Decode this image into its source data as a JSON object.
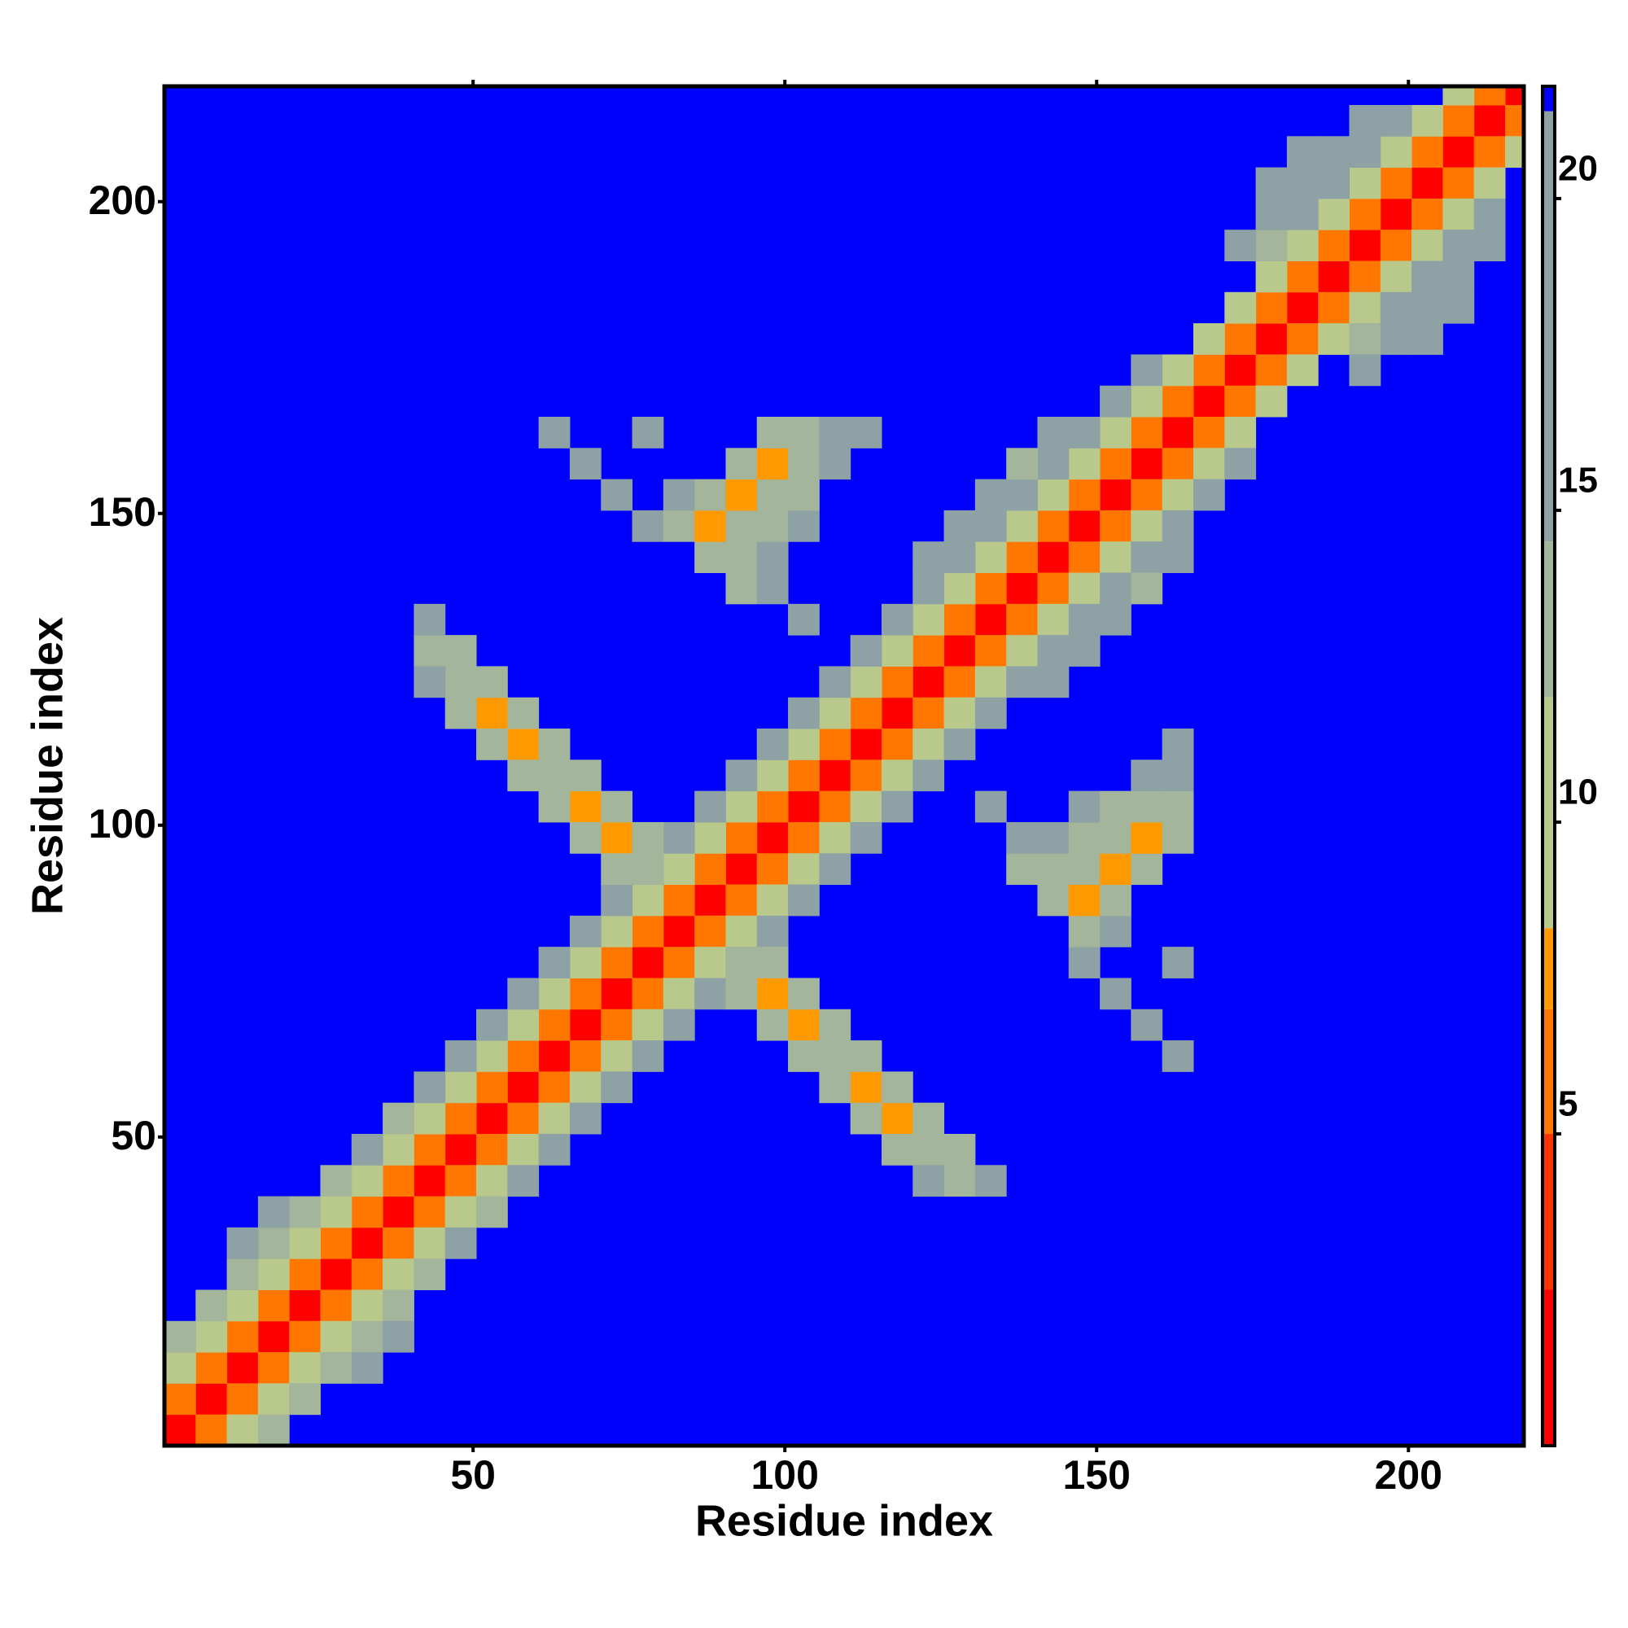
{
  "chart_data": {
    "type": "heatmap",
    "xlabel": "Residue index",
    "ylabel": "Residue index",
    "xlim": [
      0.5,
      218.5
    ],
    "ylim": [
      0.5,
      218.5
    ],
    "xticks": [
      50,
      100,
      150,
      200
    ],
    "yticks": [
      50,
      100,
      150,
      200
    ],
    "clim": [
      0,
      21.8
    ],
    "cticks": [
      5,
      10,
      15,
      20
    ],
    "symmetric": true,
    "background_color": "#0000ff",
    "color_stops": [
      {
        "value": 0,
        "color": "#ff0000"
      },
      {
        "value": 2.5,
        "color": "#ff3300"
      },
      {
        "value": 5,
        "color": "#ff7700"
      },
      {
        "value": 7,
        "color": "#ff9900"
      },
      {
        "value": 8.3,
        "color": "#b9c98c"
      },
      {
        "value": 12,
        "color": "#a3b59a"
      },
      {
        "value": 14.5,
        "color": "#8ea2a6"
      },
      {
        "value": 21.4,
        "color": "#0000ff"
      }
    ],
    "cells": [
      [
        3,
        3,
        2
      ],
      [
        8,
        8,
        2
      ],
      [
        13,
        13,
        2
      ],
      [
        18,
        18,
        2
      ],
      [
        23,
        23,
        2
      ],
      [
        28,
        28,
        2
      ],
      [
        33,
        33,
        2
      ],
      [
        38,
        38,
        2
      ],
      [
        43,
        43,
        2
      ],
      [
        48,
        48,
        2
      ],
      [
        53,
        53,
        2
      ],
      [
        58,
        58,
        2
      ],
      [
        63,
        63,
        2
      ],
      [
        68,
        68,
        2
      ],
      [
        73,
        73,
        2
      ],
      [
        78,
        78,
        2
      ],
      [
        83,
        83,
        2
      ],
      [
        88,
        88,
        2
      ],
      [
        93,
        93,
        2
      ],
      [
        98,
        98,
        2
      ],
      [
        103,
        103,
        2
      ],
      [
        108,
        108,
        2
      ],
      [
        113,
        113,
        2
      ],
      [
        118,
        118,
        2
      ],
      [
        123,
        123,
        2
      ],
      [
        128,
        128,
        2
      ],
      [
        133,
        133,
        2
      ],
      [
        138,
        138,
        2
      ],
      [
        143,
        143,
        2
      ],
      [
        148,
        148,
        2
      ],
      [
        153,
        153,
        2
      ],
      [
        158,
        158,
        2
      ],
      [
        163,
        163,
        2
      ],
      [
        168,
        168,
        2
      ],
      [
        173,
        173,
        2
      ],
      [
        178,
        178,
        2
      ],
      [
        183,
        183,
        2
      ],
      [
        188,
        188,
        2
      ],
      [
        193,
        193,
        2
      ],
      [
        198,
        198,
        2
      ],
      [
        203,
        203,
        2
      ],
      [
        208,
        208,
        2
      ],
      [
        213,
        213,
        2
      ],
      [
        218,
        218,
        2
      ],
      [
        3,
        8,
        6
      ],
      [
        8,
        13,
        6
      ],
      [
        13,
        18,
        6
      ],
      [
        18,
        23,
        6
      ],
      [
        23,
        28,
        6
      ],
      [
        28,
        33,
        6
      ],
      [
        33,
        38,
        6
      ],
      [
        38,
        43,
        6
      ],
      [
        43,
        48,
        6
      ],
      [
        48,
        53,
        6
      ],
      [
        53,
        58,
        6
      ],
      [
        58,
        63,
        6
      ],
      [
        63,
        68,
        6
      ],
      [
        68,
        73,
        6
      ],
      [
        73,
        78,
        6
      ],
      [
        78,
        83,
        6
      ],
      [
        83,
        88,
        6
      ],
      [
        88,
        93,
        6
      ],
      [
        93,
        98,
        6
      ],
      [
        98,
        103,
        6
      ],
      [
        103,
        108,
        6
      ],
      [
        108,
        113,
        6
      ],
      [
        113,
        118,
        6
      ],
      [
        118,
        123,
        6
      ],
      [
        123,
        128,
        6
      ],
      [
        128,
        133,
        6
      ],
      [
        133,
        138,
        6
      ],
      [
        138,
        143,
        6
      ],
      [
        143,
        148,
        6
      ],
      [
        148,
        153,
        6
      ],
      [
        153,
        158,
        6
      ],
      [
        158,
        163,
        6
      ],
      [
        163,
        168,
        6
      ],
      [
        168,
        173,
        6
      ],
      [
        173,
        178,
        6
      ],
      [
        178,
        183,
        6
      ],
      [
        183,
        188,
        6
      ],
      [
        188,
        193,
        6
      ],
      [
        193,
        198,
        6
      ],
      [
        198,
        203,
        6
      ],
      [
        203,
        208,
        6
      ],
      [
        208,
        213,
        6
      ],
      [
        213,
        218,
        6
      ],
      [
        3,
        13,
        10
      ],
      [
        8,
        18,
        10
      ],
      [
        13,
        23,
        10
      ],
      [
        18,
        28,
        10
      ],
      [
        23,
        33,
        10
      ],
      [
        28,
        38,
        10
      ],
      [
        33,
        43,
        10
      ],
      [
        38,
        48,
        10
      ],
      [
        43,
        53,
        10
      ],
      [
        48,
        58,
        10
      ],
      [
        53,
        63,
        10
      ],
      [
        58,
        68,
        10
      ],
      [
        63,
        73,
        10
      ],
      [
        68,
        78,
        10
      ],
      [
        73,
        83,
        10
      ],
      [
        78,
        88,
        10
      ],
      [
        83,
        93,
        10
      ],
      [
        88,
        98,
        10
      ],
      [
        93,
        103,
        10
      ],
      [
        98,
        108,
        10
      ],
      [
        103,
        113,
        10
      ],
      [
        108,
        118,
        10
      ],
      [
        113,
        123,
        10
      ],
      [
        118,
        128,
        10
      ],
      [
        123,
        133,
        10
      ],
      [
        128,
        138,
        10
      ],
      [
        133,
        143,
        10
      ],
      [
        138,
        148,
        10
      ],
      [
        143,
        153,
        10
      ],
      [
        148,
        158,
        10
      ],
      [
        153,
        163,
        10
      ],
      [
        158,
        168,
        10
      ],
      [
        163,
        173,
        10
      ],
      [
        168,
        178,
        10
      ],
      [
        173,
        183,
        10
      ],
      [
        178,
        188,
        10
      ],
      [
        183,
        193,
        10
      ],
      [
        188,
        198,
        10
      ],
      [
        193,
        203,
        10
      ],
      [
        198,
        208,
        10
      ],
      [
        203,
        213,
        10
      ],
      [
        208,
        218,
        10
      ],
      [
        3,
        18,
        14
      ],
      [
        8,
        23,
        14
      ],
      [
        13,
        28,
        14
      ],
      [
        18,
        33,
        14
      ],
      [
        23,
        38,
        14
      ],
      [
        28,
        43,
        14
      ],
      [
        33,
        48,
        15
      ],
      [
        38,
        53,
        14
      ],
      [
        43,
        58,
        15
      ],
      [
        48,
        63,
        15
      ],
      [
        53,
        68,
        15
      ],
      [
        58,
        73,
        15
      ],
      [
        63,
        78,
        15
      ],
      [
        68,
        83,
        15
      ],
      [
        73,
        88,
        15
      ],
      [
        78,
        93,
        15
      ],
      [
        83,
        98,
        15
      ],
      [
        88,
        103,
        15
      ],
      [
        93,
        108,
        15
      ],
      [
        98,
        113,
        15
      ],
      [
        103,
        118,
        15
      ],
      [
        108,
        123,
        15
      ],
      [
        113,
        128,
        15
      ],
      [
        118,
        133,
        15
      ],
      [
        123,
        138,
        15
      ],
      [
        128,
        143,
        15
      ],
      [
        133,
        148,
        15
      ],
      [
        138,
        153,
        15
      ],
      [
        143,
        158,
        15
      ],
      [
        148,
        163,
        15
      ],
      [
        153,
        168,
        15
      ],
      [
        158,
        173,
        15
      ],
      [
        178,
        193,
        14
      ],
      [
        183,
        198,
        15
      ],
      [
        188,
        203,
        15
      ],
      [
        193,
        208,
        15
      ],
      [
        198,
        213,
        15
      ],
      [
        13,
        33,
        15
      ],
      [
        18,
        38,
        15
      ],
      [
        123,
        143,
        15
      ],
      [
        128,
        148,
        15
      ],
      [
        133,
        153,
        15
      ],
      [
        138,
        158,
        14
      ],
      [
        143,
        163,
        15
      ],
      [
        43,
        128,
        12
      ],
      [
        48,
        123,
        12
      ],
      [
        53,
        118,
        7
      ],
      [
        58,
        113,
        7
      ],
      [
        63,
        108,
        12
      ],
      [
        68,
        103,
        7
      ],
      [
        73,
        98,
        7
      ],
      [
        78,
        93,
        12
      ],
      [
        43,
        133,
        15
      ],
      [
        48,
        128,
        14
      ],
      [
        53,
        123,
        12
      ],
      [
        58,
        118,
        14
      ],
      [
        63,
        113,
        12
      ],
      [
        68,
        108,
        14
      ],
      [
        73,
        103,
        12
      ],
      [
        78,
        98,
        14
      ],
      [
        43,
        123,
        15
      ],
      [
        48,
        118,
        14
      ],
      [
        53,
        113,
        12
      ],
      [
        58,
        108,
        14
      ],
      [
        63,
        103,
        14
      ],
      [
        68,
        98,
        12
      ],
      [
        73,
        93,
        14
      ],
      [
        93,
        138,
        14
      ],
      [
        98,
        138,
        15
      ],
      [
        103,
        133,
        15
      ],
      [
        88,
        143,
        14
      ],
      [
        93,
        143,
        12
      ],
      [
        98,
        143,
        15
      ],
      [
        78,
        148,
        15
      ],
      [
        83,
        148,
        14
      ],
      [
        88,
        148,
        7
      ],
      [
        93,
        148,
        12
      ],
      [
        98,
        148,
        14
      ],
      [
        103,
        148,
        15
      ],
      [
        73,
        153,
        15
      ],
      [
        83,
        153,
        15
      ],
      [
        88,
        153,
        12
      ],
      [
        93,
        153,
        7
      ],
      [
        98,
        153,
        12
      ],
      [
        103,
        153,
        14
      ],
      [
        68,
        158,
        15
      ],
      [
        93,
        158,
        12
      ],
      [
        98,
        158,
        7
      ],
      [
        103,
        158,
        12
      ],
      [
        108,
        158,
        15
      ],
      [
        63,
        163,
        15
      ],
      [
        78,
        163,
        15
      ],
      [
        98,
        163,
        14
      ],
      [
        103,
        163,
        12
      ],
      [
        108,
        163,
        15
      ],
      [
        113,
        163,
        15
      ],
      [
        178,
        198,
        15
      ],
      [
        183,
        203,
        15
      ],
      [
        178,
        203,
        15
      ],
      [
        183,
        208,
        15
      ],
      [
        188,
        208,
        15
      ],
      [
        193,
        213,
        15
      ],
      [
        173,
        193,
        15
      ]
    ]
  }
}
